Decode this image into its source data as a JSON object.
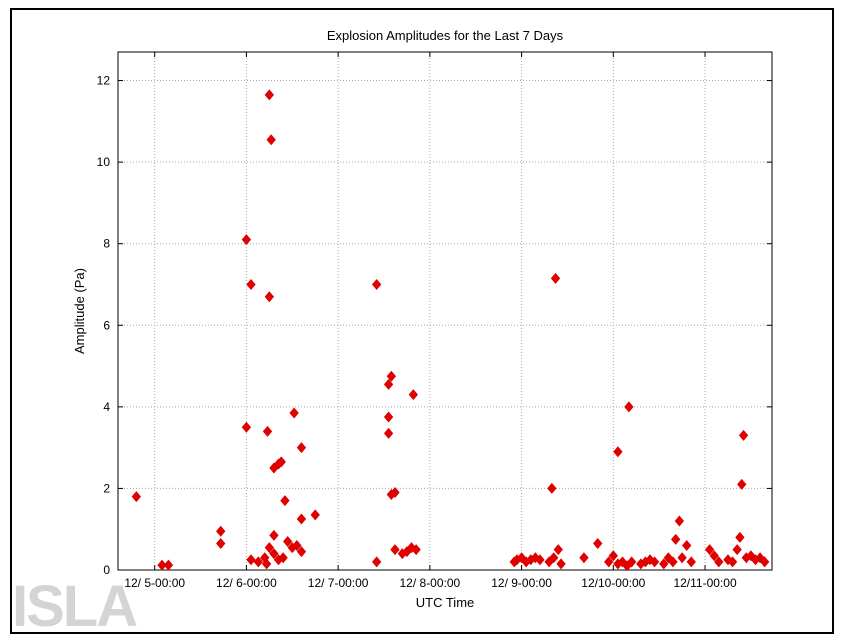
{
  "chart_data": {
    "type": "scatter",
    "title": "Explosion Amplitudes for the Last 7 Days",
    "xlabel": "UTC Time",
    "ylabel": "Amplitude (Pa)",
    "x_unit": "days",
    "xlim": [
      4.6,
      11.73
    ],
    "ylim": [
      0,
      12.7
    ],
    "x_ticks": [
      5,
      6,
      7,
      8,
      9,
      10,
      11
    ],
    "x_tick_labels": [
      "12/ 5-00:00",
      "12/ 6-00:00",
      "12/ 7-00:00",
      "12/ 8-00:00",
      "12/ 9-00:00",
      "12/10-00:00",
      "12/11-00:00"
    ],
    "y_ticks": [
      0,
      2,
      4,
      6,
      8,
      10,
      12
    ],
    "y_tick_labels": [
      "0",
      "2",
      "4",
      "6",
      "8",
      "10",
      "12"
    ],
    "grid": true,
    "marker": "diamond",
    "marker_color": "#e00000",
    "series": [
      {
        "name": "",
        "points": [
          [
            4.8,
            1.8
          ],
          [
            5.08,
            0.12
          ],
          [
            5.15,
            0.12
          ],
          [
            5.72,
            0.95
          ],
          [
            5.72,
            0.65
          ],
          [
            6.0,
            8.1
          ],
          [
            6.05,
            7.0
          ],
          [
            6.0,
            3.5
          ],
          [
            6.05,
            0.25
          ],
          [
            6.13,
            0.2
          ],
          [
            6.25,
            11.65
          ],
          [
            6.27,
            10.55
          ],
          [
            6.25,
            6.7
          ],
          [
            6.23,
            3.4
          ],
          [
            6.3,
            2.5
          ],
          [
            6.35,
            2.6
          ],
          [
            6.38,
            2.65
          ],
          [
            6.42,
            1.7
          ],
          [
            6.52,
            3.85
          ],
          [
            6.6,
            3.0
          ],
          [
            6.6,
            1.25
          ],
          [
            6.75,
            1.35
          ],
          [
            6.25,
            0.55
          ],
          [
            6.3,
            0.4
          ],
          [
            6.3,
            0.85
          ],
          [
            6.2,
            0.3
          ],
          [
            6.22,
            0.15
          ],
          [
            6.35,
            0.25
          ],
          [
            6.4,
            0.3
          ],
          [
            6.45,
            0.7
          ],
          [
            6.5,
            0.55
          ],
          [
            6.55,
            0.6
          ],
          [
            6.6,
            0.45
          ],
          [
            7.42,
            7.0
          ],
          [
            7.42,
            0.2
          ],
          [
            7.55,
            4.55
          ],
          [
            7.58,
            4.75
          ],
          [
            7.55,
            3.75
          ],
          [
            7.55,
            3.35
          ],
          [
            7.58,
            1.85
          ],
          [
            7.62,
            1.9
          ],
          [
            7.62,
            0.5
          ],
          [
            7.75,
            0.45
          ],
          [
            7.8,
            0.55
          ],
          [
            7.82,
            4.3
          ],
          [
            7.85,
            0.5
          ],
          [
            7.7,
            0.4
          ],
          [
            8.92,
            0.2
          ],
          [
            8.95,
            0.25
          ],
          [
            9.0,
            0.3
          ],
          [
            9.05,
            0.2
          ],
          [
            9.1,
            0.25
          ],
          [
            9.15,
            0.3
          ],
          [
            9.2,
            0.25
          ],
          [
            9.3,
            0.2
          ],
          [
            9.33,
            2.0
          ],
          [
            9.35,
            0.3
          ],
          [
            9.37,
            7.15
          ],
          [
            9.4,
            0.5
          ],
          [
            9.43,
            0.15
          ],
          [
            9.68,
            0.3
          ],
          [
            9.83,
            0.65
          ],
          [
            9.95,
            0.2
          ],
          [
            10.0,
            0.35
          ],
          [
            10.05,
            2.9
          ],
          [
            10.05,
            0.15
          ],
          [
            10.1,
            0.2
          ],
          [
            10.15,
            0.1
          ],
          [
            10.17,
            4.0
          ],
          [
            10.2,
            0.2
          ],
          [
            10.3,
            0.15
          ],
          [
            10.35,
            0.2
          ],
          [
            10.4,
            0.25
          ],
          [
            10.45,
            0.2
          ],
          [
            10.55,
            0.15
          ],
          [
            10.6,
            0.3
          ],
          [
            10.65,
            0.2
          ],
          [
            10.68,
            0.75
          ],
          [
            10.72,
            1.2
          ],
          [
            10.75,
            0.3
          ],
          [
            10.8,
            0.6
          ],
          [
            10.85,
            0.2
          ],
          [
            11.05,
            0.5
          ],
          [
            11.1,
            0.35
          ],
          [
            11.15,
            0.2
          ],
          [
            11.25,
            0.25
          ],
          [
            11.3,
            0.2
          ],
          [
            11.35,
            0.5
          ],
          [
            11.38,
            0.8
          ],
          [
            11.4,
            2.1
          ],
          [
            11.42,
            3.3
          ],
          [
            11.45,
            0.3
          ],
          [
            11.5,
            0.35
          ],
          [
            11.55,
            0.25
          ],
          [
            11.6,
            0.3
          ],
          [
            11.65,
            0.2
          ]
        ]
      }
    ]
  },
  "watermark": {
    "text": "ISLA"
  },
  "colors": {
    "axis": "#000000",
    "grid": "#aaaaaa",
    "marker": "#e00000"
  }
}
